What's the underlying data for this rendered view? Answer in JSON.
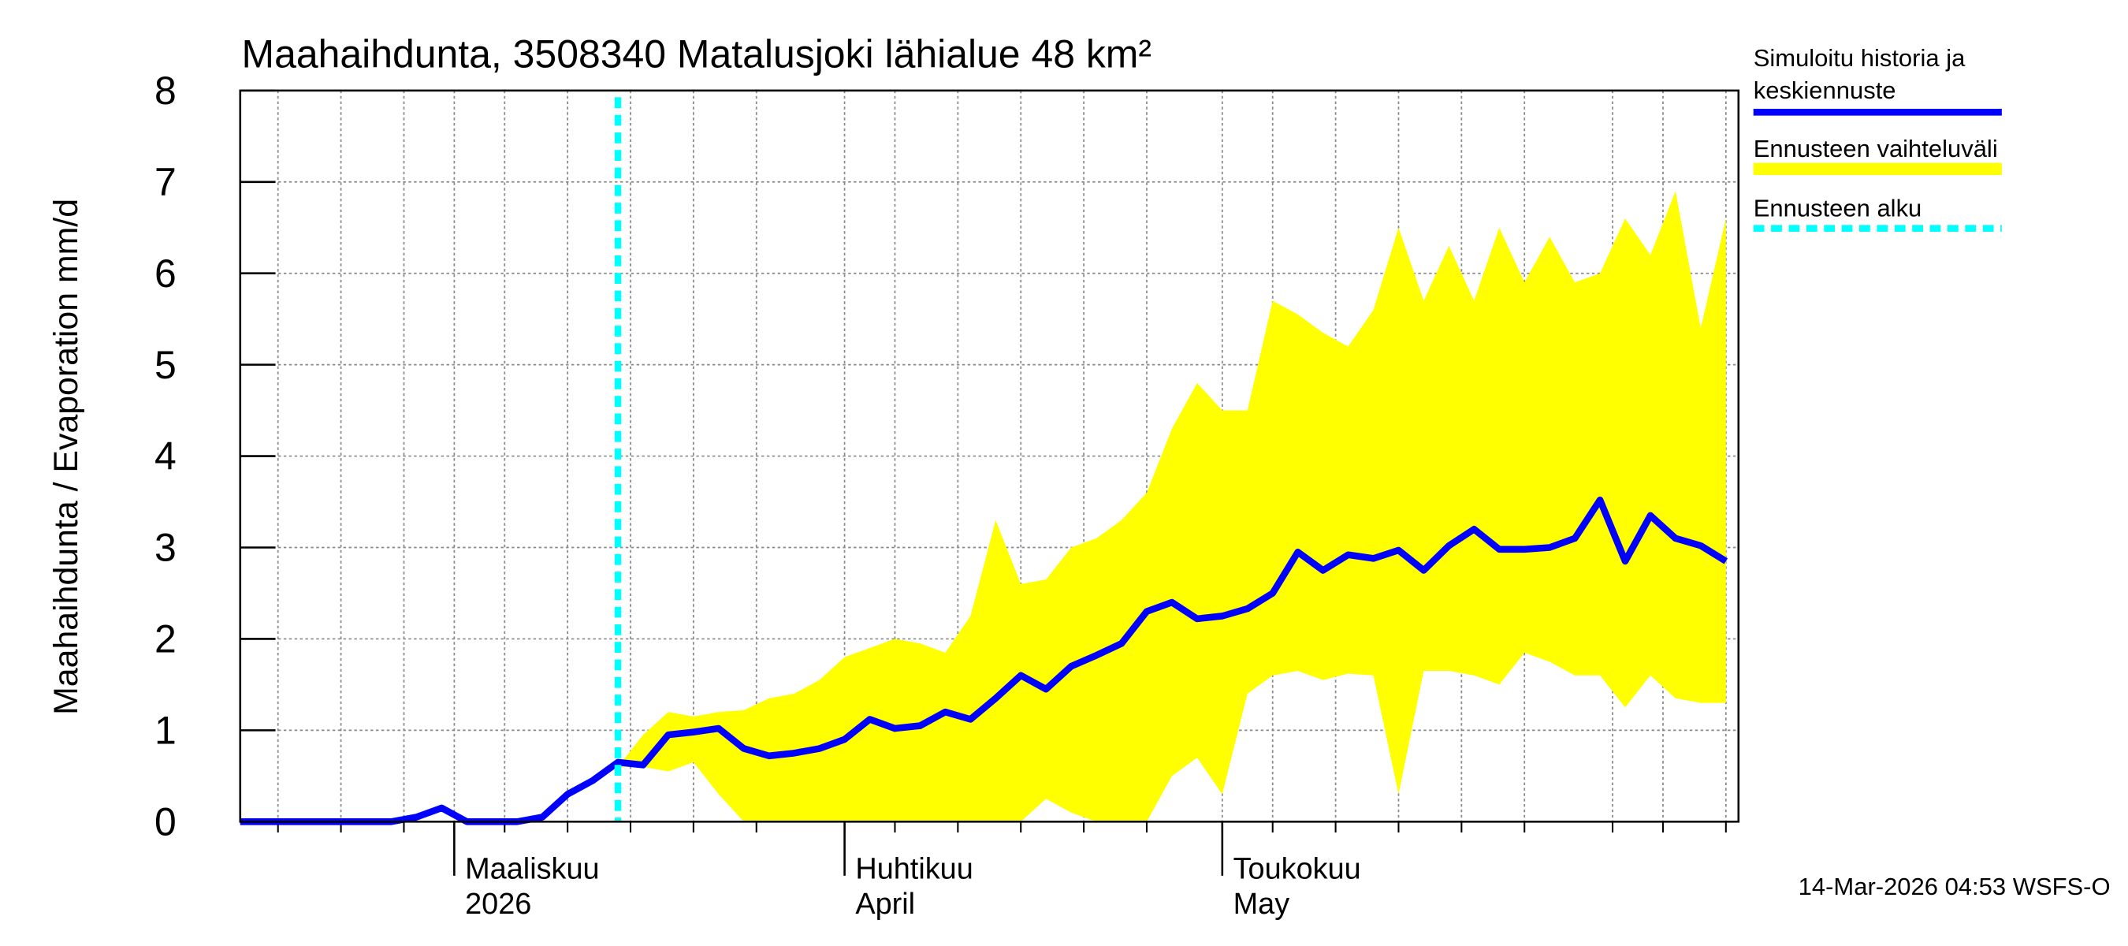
{
  "chart_data": {
    "type": "line",
    "title": "Maahaihdunta, 3508340 Matalusjoki lähialue 48 km²",
    "y_label": "Maahaihdunta / Evaporation   mm/d",
    "timestamp": "14-Mar-2026 04:53 WSFS-O",
    "x": [
      43,
      45,
      47,
      49,
      51,
      53,
      55,
      57,
      59,
      61,
      63,
      65,
      67,
      69,
      71,
      73,
      75,
      77,
      79,
      81,
      83,
      85,
      87,
      89,
      91,
      93,
      95,
      97,
      99,
      101,
      103,
      105,
      107,
      109,
      111,
      113,
      115,
      117,
      119,
      121,
      123,
      125,
      127,
      129,
      131,
      133,
      135,
      137,
      139,
      141,
      143,
      145,
      147,
      149,
      151,
      153,
      155,
      157,
      159,
      161
    ],
    "series": [
      {
        "name": "Ennusteen vaihteluväli",
        "color": "#ffff00",
        "kind": "band",
        "values": [
          null,
          null,
          null,
          null,
          null,
          null,
          null,
          null,
          null,
          null,
          null,
          null,
          null,
          null,
          null,
          0.6,
          0.95,
          1.2,
          1.15,
          1.2,
          1.22,
          1.35,
          1.4,
          1.55,
          1.8,
          1.9,
          2.0,
          1.95,
          1.85,
          2.25,
          3.3,
          2.6,
          2.65,
          3.0,
          3.1,
          3.3,
          3.6,
          4.3,
          4.8,
          4.5,
          4.5,
          5.7,
          5.55,
          5.35,
          5.2,
          5.6,
          6.5,
          5.7,
          6.3,
          5.7,
          6.5,
          5.9,
          6.4,
          5.9,
          6.0,
          6.6,
          6.2,
          6.9,
          5.4,
          6.6
        ],
        "lower": [
          null,
          null,
          null,
          null,
          null,
          null,
          null,
          null,
          null,
          null,
          null,
          null,
          null,
          null,
          null,
          0.6,
          0.6,
          0.55,
          0.65,
          0.3,
          0,
          0,
          0,
          0,
          0,
          0,
          0,
          0,
          0,
          0,
          0,
          0,
          0.25,
          0.1,
          0,
          0,
          0,
          0.5,
          0.7,
          0.3,
          1.4,
          1.6,
          1.65,
          1.55,
          1.62,
          1.6,
          0.3,
          1.65,
          1.65,
          1.6,
          1.5,
          1.85,
          1.75,
          1.6,
          1.6,
          1.25,
          1.6,
          1.35,
          1.3,
          1.3
        ]
      },
      {
        "name": "Simuloitu historia ja\nkeskiennuste",
        "color": "#0000ff",
        "kind": "line",
        "values": [
          0,
          0,
          0,
          0,
          0,
          0,
          0,
          0.05,
          0.15,
          0,
          0,
          0,
          0.05,
          0.3,
          0.45,
          0.65,
          0.62,
          0.95,
          0.98,
          1.02,
          0.8,
          0.72,
          0.75,
          0.8,
          0.9,
          1.12,
          1.02,
          1.05,
          1.2,
          1.12,
          1.35,
          1.6,
          1.45,
          1.7,
          1.82,
          1.95,
          2.3,
          2.4,
          2.22,
          2.25,
          2.33,
          2.5,
          2.95,
          2.75,
          2.92,
          2.88,
          2.97,
          2.75,
          3.02,
          3.2,
          2.98,
          2.98,
          3.0,
          3.1,
          3.52,
          2.85,
          3.35,
          3.1,
          3.02,
          2.85
        ]
      }
    ],
    "forecast_start": 73,
    "forecast_label": "Ennusteen alku",
    "forecast_color": "#00ffff",
    "xlim": [
      43,
      162
    ],
    "xticks": [
      {
        "value": 60,
        "label": "Maaliskuu\n2026"
      },
      {
        "value": 91,
        "label": "Huhtikuu\nApril"
      },
      {
        "value": 121,
        "label": "Toukokuu\nMay"
      }
    ],
    "xgrid": [
      46,
      51,
      56,
      60,
      64,
      69,
      74,
      79,
      84,
      91,
      95,
      100,
      105,
      110,
      115,
      121,
      125,
      130,
      135,
      140,
      145,
      152,
      156,
      161
    ],
    "ylim": [
      0,
      8
    ],
    "yticks": [
      0,
      1,
      2,
      3,
      4,
      5,
      6,
      7,
      8
    ],
    "grid": true
  }
}
